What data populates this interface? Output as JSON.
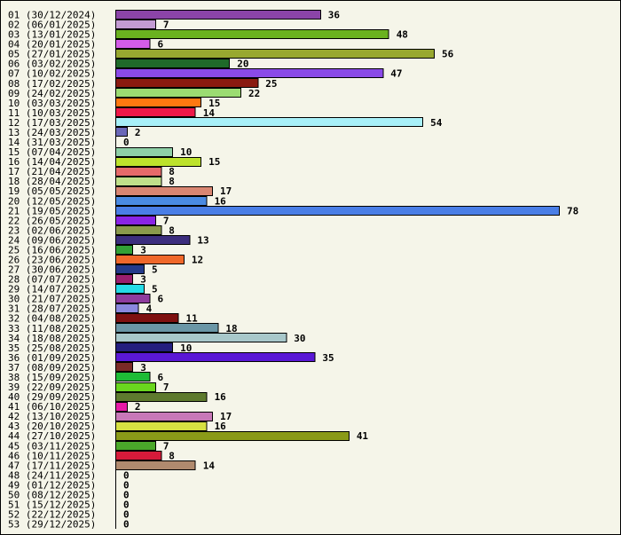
{
  "chart_data": {
    "type": "bar",
    "orientation": "horizontal",
    "title": "",
    "xlabel": "",
    "ylabel": "",
    "xlim": [
      0,
      78
    ],
    "grid": false,
    "legend": "none",
    "categories": [
      "01 (30/12/2024)",
      "02 (06/01/2025)",
      "03 (13/01/2025)",
      "04 (20/01/2025)",
      "05 (27/01/2025)",
      "06 (03/02/2025)",
      "07 (10/02/2025)",
      "08 (17/02/2025)",
      "09 (24/02/2025)",
      "10 (03/03/2025)",
      "11 (10/03/2025)",
      "12 (17/03/2025)",
      "13 (24/03/2025)",
      "14 (31/03/2025)",
      "15 (07/04/2025)",
      "16 (14/04/2025)",
      "17 (21/04/2025)",
      "18 (28/04/2025)",
      "19 (05/05/2025)",
      "20 (12/05/2025)",
      "21 (19/05/2025)",
      "22 (26/05/2025)",
      "23 (02/06/2025)",
      "24 (09/06/2025)",
      "25 (16/06/2025)",
      "26 (23/06/2025)",
      "27 (30/06/2025)",
      "28 (07/07/2025)",
      "29 (14/07/2025)",
      "30 (21/07/2025)",
      "31 (28/07/2025)",
      "32 (04/08/2025)",
      "33 (11/08/2025)",
      "34 (18/08/2025)",
      "35 (25/08/2025)",
      "36 (01/09/2025)",
      "37 (08/09/2025)",
      "38 (15/09/2025)",
      "39 (22/09/2025)",
      "40 (29/09/2025)",
      "41 (06/10/2025)",
      "42 (13/10/2025)",
      "43 (20/10/2025)",
      "44 (27/10/2025)",
      "45 (03/11/2025)",
      "46 (10/11/2025)",
      "47 (17/11/2025)",
      "48 (24/11/2025)",
      "49 (01/12/2025)",
      "50 (08/12/2025)",
      "51 (15/12/2025)",
      "52 (22/12/2025)",
      "53 (29/12/2025)"
    ],
    "values": [
      36,
      7,
      48,
      6,
      56,
      20,
      47,
      25,
      22,
      15,
      14,
      54,
      2,
      0,
      10,
      15,
      8,
      8,
      17,
      16,
      78,
      7,
      8,
      13,
      3,
      12,
      5,
      3,
      5,
      6,
      4,
      11,
      18,
      30,
      10,
      35,
      3,
      6,
      7,
      16,
      2,
      17,
      16,
      41,
      7,
      8,
      14,
      0,
      0,
      0,
      0,
      0,
      0
    ],
    "colors": [
      "#8b44a8",
      "#c39bd3",
      "#6ab21f",
      "#d45ce8",
      "#98a830",
      "#1f6a2a",
      "#8a4ae8",
      "#8a1a10",
      "#9bdc72",
      "#ff7810",
      "#ee1848",
      "#a8f0f8",
      "#6a68b8",
      "#ffffff",
      "#8ecfa6",
      "#bde22c",
      "#e66a6a",
      "#c0e08a",
      "#d98672",
      "#4a8ae2",
      "#4a7ee6",
      "#8a24e6",
      "#8a9a4c",
      "#3c2e7e",
      "#32a036",
      "#f0682a",
      "#243a8a",
      "#9a1e6e",
      "#24dbe6",
      "#8e3c9e",
      "#8a88de",
      "#7e1010",
      "#6a96a6",
      "#a8c8ca",
      "#241e7e",
      "#5a18d6",
      "#7a2a26",
      "#1ebc36",
      "#6ad61e",
      "#5e7a2e",
      "#e61aa6",
      "#c878b8",
      "#d6e042",
      "#8a9a18",
      "#4aa82a",
      "#d61a3a",
      "#b08a6e",
      "#ffffff",
      "#ffffff",
      "#ffffff",
      "#ffffff",
      "#ffffff",
      "#ffffff"
    ]
  }
}
